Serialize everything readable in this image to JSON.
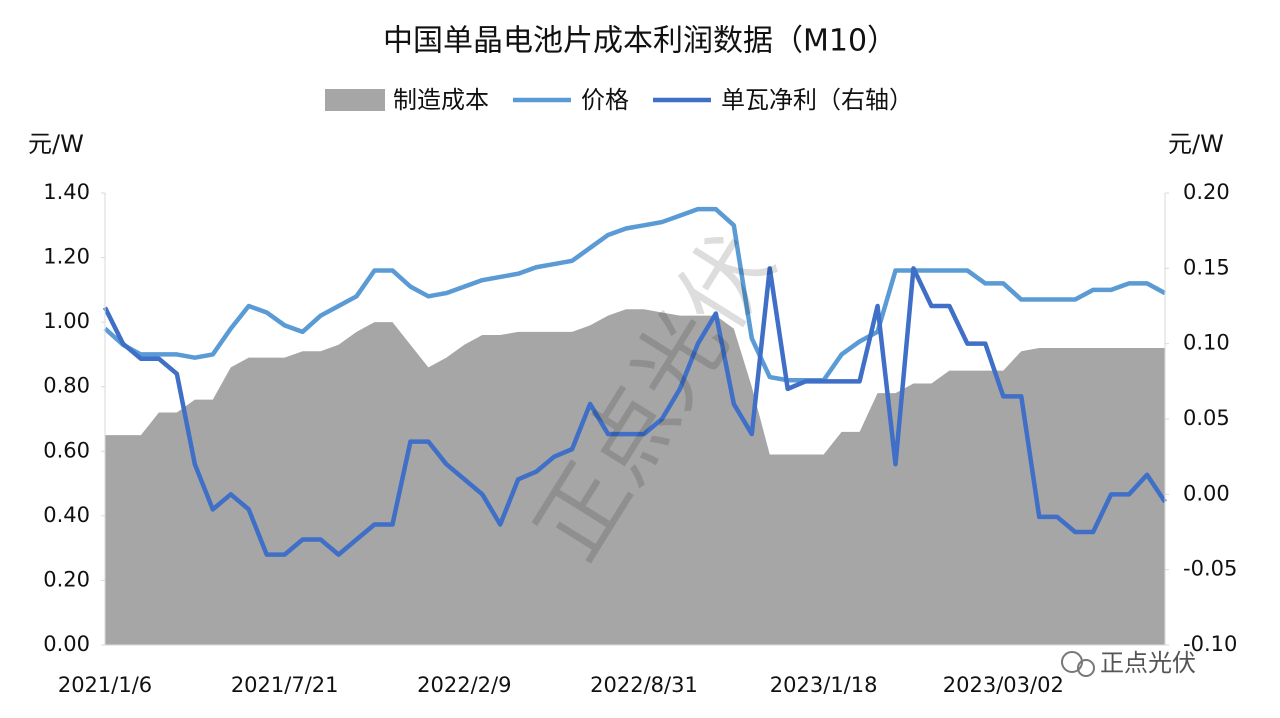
{
  "chart_data": {
    "type": "combo",
    "title": "中国单晶电池片成本利润数据（M10）",
    "y_label": "元/W",
    "y2_label": "元/W",
    "watermark": "正点光伏",
    "logo": "正点光伏",
    "categories": [
      "2021/1/6",
      null,
      null,
      null,
      null,
      null,
      null,
      null,
      null,
      null,
      "2021/7/21",
      null,
      null,
      null,
      null,
      null,
      null,
      null,
      null,
      null,
      "2022/2/9",
      null,
      null,
      null,
      null,
      null,
      null,
      null,
      null,
      null,
      "2022/8/31",
      null,
      null,
      null,
      null,
      null,
      null,
      null,
      null,
      null,
      "2023/1/18",
      null,
      null,
      null,
      null,
      null,
      null,
      null,
      null,
      null,
      "2023/03/02",
      null,
      null,
      null,
      null,
      null,
      null,
      null,
      null,
      null
    ],
    "series": [
      {
        "name": "制造成本",
        "kind": "area",
        "color": "#a6a6a6",
        "axis": "y",
        "values": [
          0.65,
          0.65,
          0.65,
          0.72,
          0.72,
          0.76,
          0.76,
          0.86,
          0.89,
          0.89,
          0.89,
          0.91,
          0.91,
          0.93,
          0.97,
          1.0,
          1.0,
          0.93,
          0.86,
          0.89,
          0.93,
          0.96,
          0.96,
          0.97,
          0.97,
          0.97,
          0.97,
          0.99,
          1.02,
          1.04,
          1.04,
          1.03,
          1.02,
          1.02,
          1.02,
          0.98,
          0.8,
          0.59,
          0.59,
          0.59,
          0.59,
          0.66,
          0.66,
          0.78,
          0.78,
          0.81,
          0.81,
          0.85,
          0.85,
          0.85,
          0.85,
          0.91,
          0.92,
          0.92,
          0.92,
          0.92,
          0.92,
          0.92,
          0.92,
          0.92
        ]
      },
      {
        "name": "价格",
        "kind": "line",
        "color": "#5b9bd5",
        "axis": "y",
        "values": [
          0.98,
          0.93,
          0.9,
          0.9,
          0.9,
          0.89,
          0.9,
          0.98,
          1.05,
          1.03,
          0.99,
          0.97,
          1.02,
          1.05,
          1.08,
          1.16,
          1.16,
          1.11,
          1.08,
          1.09,
          1.11,
          1.13,
          1.14,
          1.15,
          1.17,
          1.18,
          1.19,
          1.23,
          1.27,
          1.29,
          1.3,
          1.31,
          1.33,
          1.35,
          1.35,
          1.3,
          0.95,
          0.83,
          0.82,
          0.82,
          0.82,
          0.9,
          0.94,
          0.97,
          1.16,
          1.16,
          1.16,
          1.16,
          1.16,
          1.12,
          1.12,
          1.07,
          1.07,
          1.07,
          1.07,
          1.1,
          1.1,
          1.12,
          1.12,
          1.09
        ]
      },
      {
        "name": "单瓦净利（右轴）",
        "kind": "line",
        "color": "#3f6fc6",
        "axis": "y2",
        "values": [
          0.124,
          0.1,
          0.09,
          0.09,
          0.08,
          0.02,
          -0.01,
          0.0,
          -0.01,
          -0.04,
          -0.04,
          -0.03,
          -0.03,
          -0.04,
          -0.03,
          -0.02,
          -0.02,
          0.035,
          0.035,
          0.02,
          0.01,
          0.0,
          -0.02,
          0.01,
          0.015,
          0.025,
          0.03,
          0.06,
          0.04,
          0.04,
          0.04,
          0.05,
          0.07,
          0.1,
          0.12,
          0.06,
          0.04,
          0.15,
          0.07,
          0.075,
          0.075,
          0.075,
          0.075,
          0.125,
          0.02,
          0.15,
          0.125,
          0.125,
          0.1,
          0.1,
          0.065,
          0.065,
          -0.015,
          -0.015,
          -0.025,
          -0.025,
          0.0,
          0.0,
          0.013,
          -0.005
        ]
      }
    ],
    "ylim": [
      0,
      1.4
    ],
    "yticks": [
      {
        "value": 0,
        "label": "0.00"
      },
      {
        "value": 0.2,
        "label": "0.20"
      },
      {
        "value": 0.4,
        "label": "0.40"
      },
      {
        "value": 0.6,
        "label": "0.60"
      },
      {
        "value": 0.8,
        "label": "0.80"
      },
      {
        "value": 1.0,
        "label": "1.00"
      },
      {
        "value": 1.2,
        "label": "1.20"
      },
      {
        "value": 1.4,
        "label": "1.40"
      }
    ],
    "y2lim": [
      -0.1,
      0.2
    ],
    "y2ticks": [
      {
        "value": -0.1,
        "label": "-0.10"
      },
      {
        "value": -0.05,
        "label": "-0.05"
      },
      {
        "value": 0,
        "label": "0.00"
      },
      {
        "value": 0.05,
        "label": "0.05"
      },
      {
        "value": 0.1,
        "label": "0.10"
      },
      {
        "value": 0.15,
        "label": "0.15"
      },
      {
        "value": 0.2,
        "label": "0.20"
      }
    ]
  }
}
